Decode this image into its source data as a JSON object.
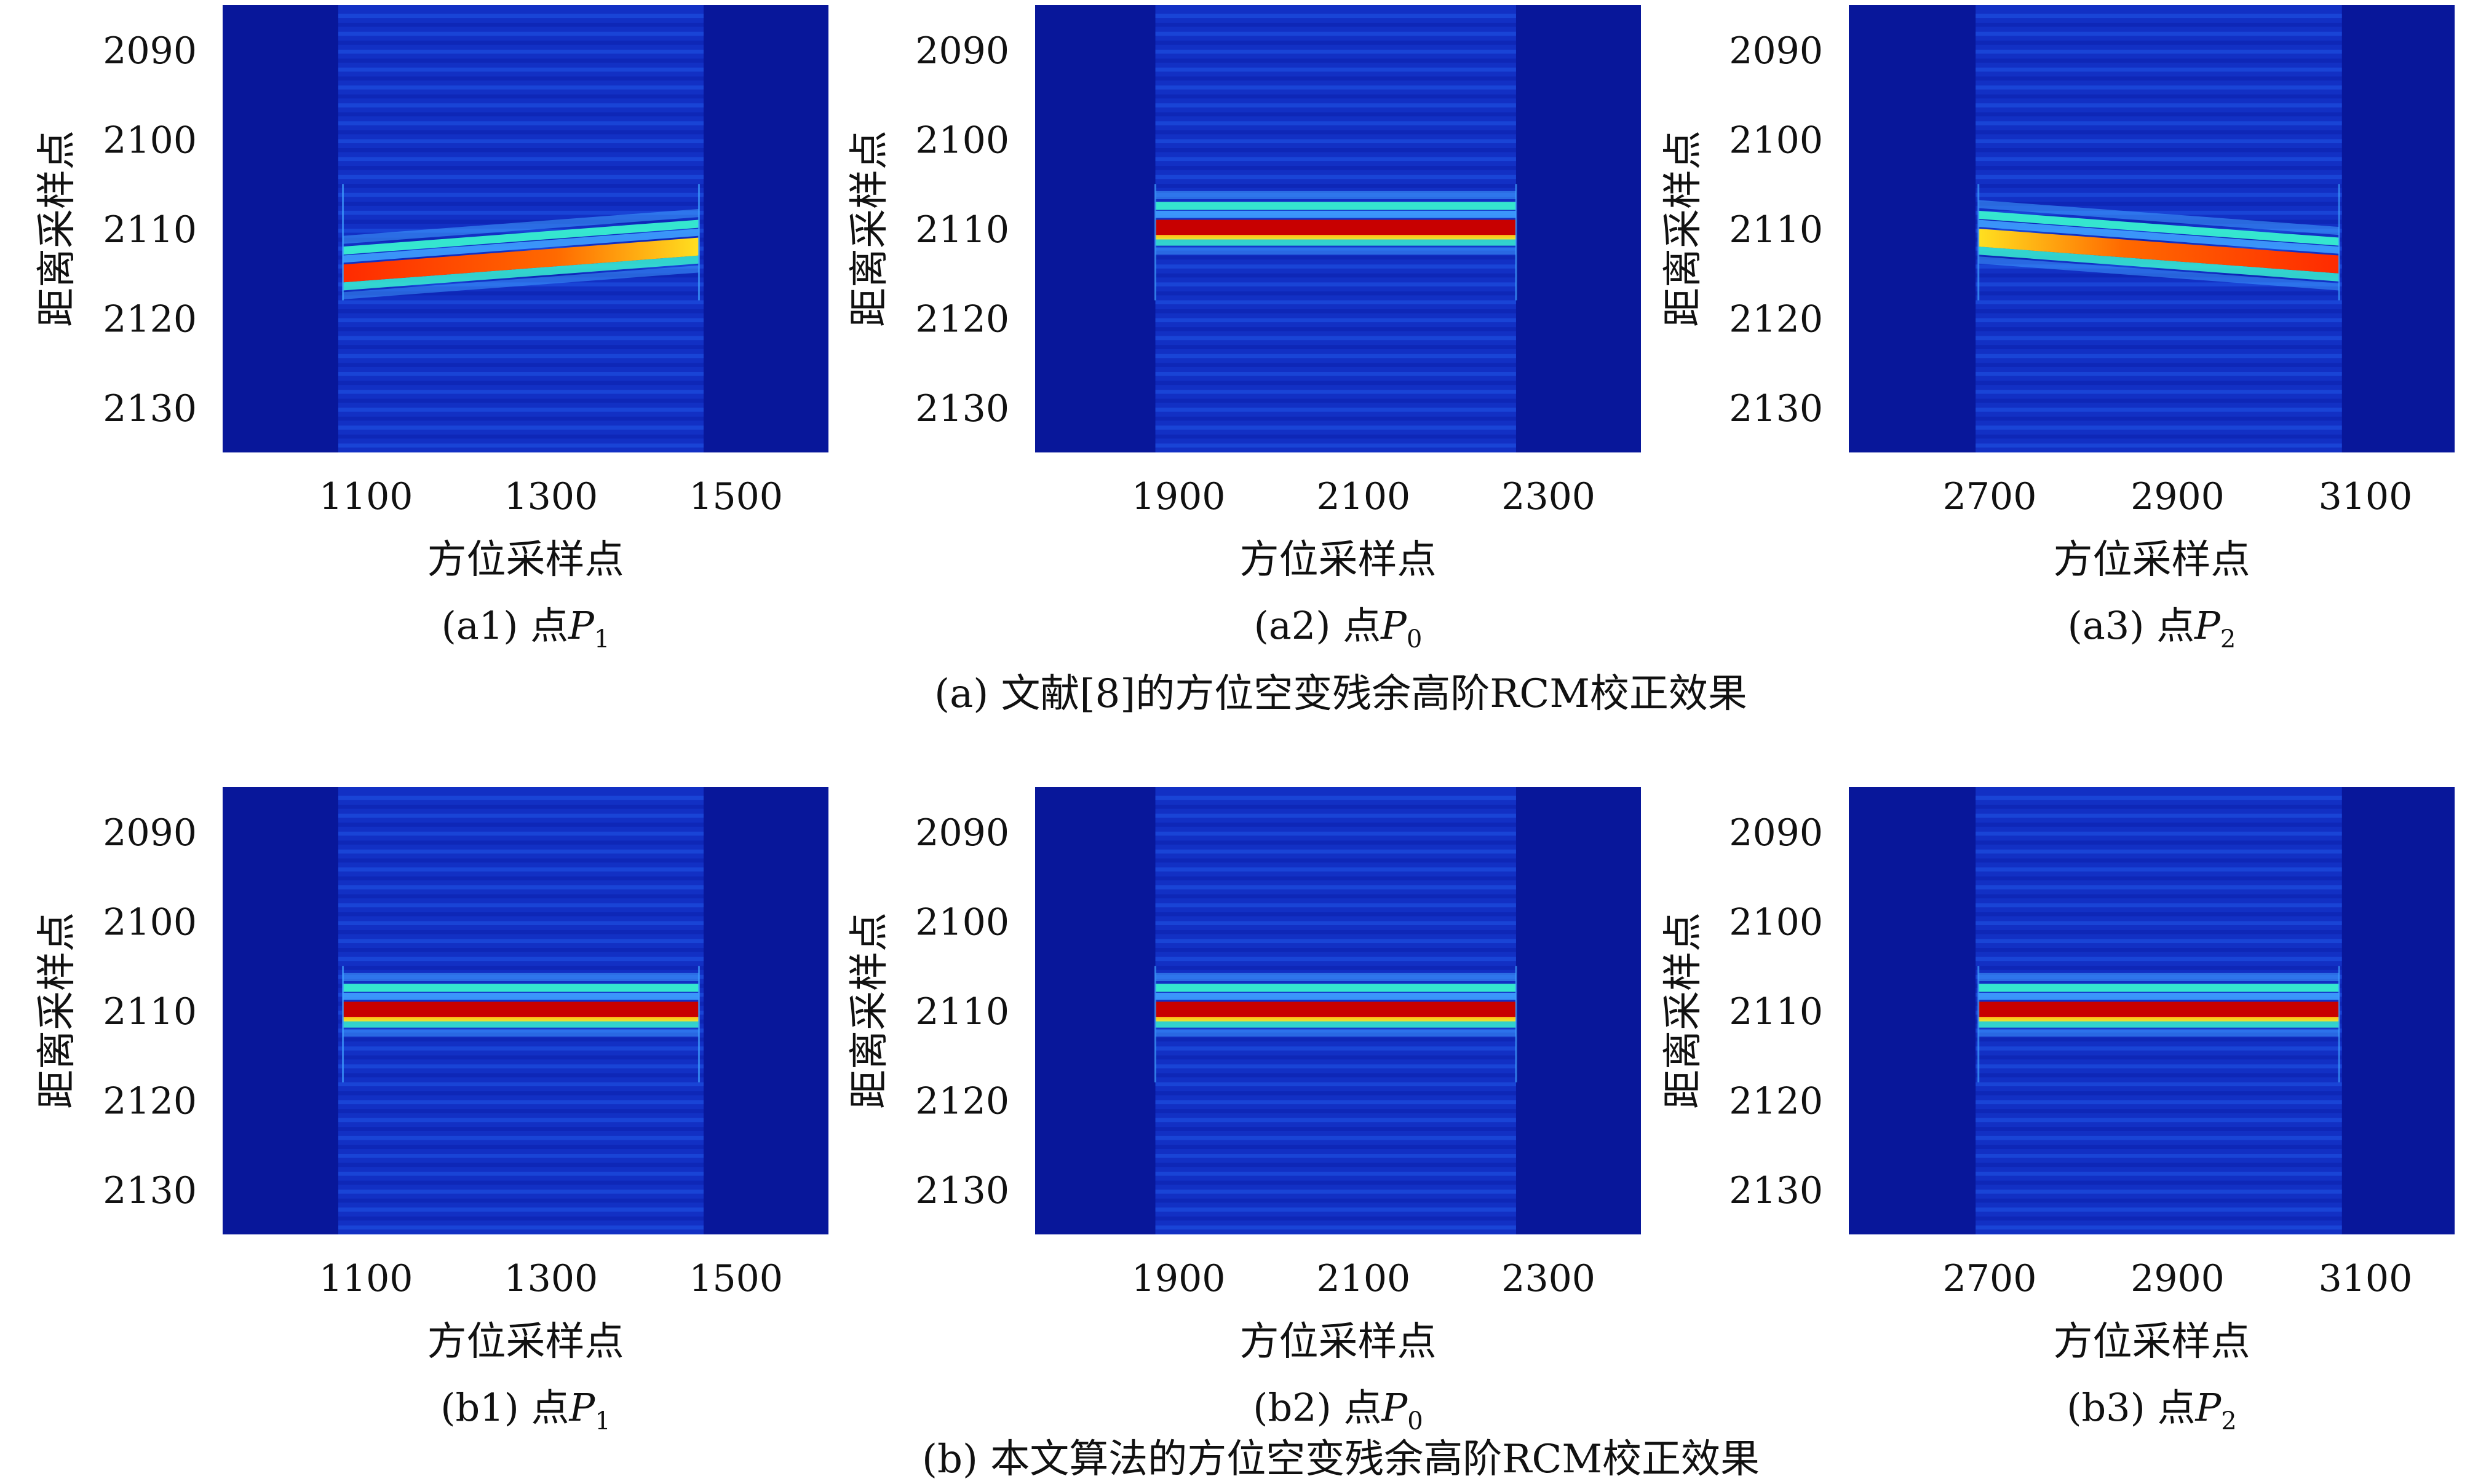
{
  "figure": {
    "caption_a": "(a) 文献[8]的方位空变残余高阶RCM校正效果",
    "caption_b": "(b) 本文算法的方位空变残余高阶RCM校正效果"
  },
  "chart_data": [
    {
      "id": "a1",
      "type": "heatmap",
      "row": "a",
      "sublabel": "(a1) 点",
      "point_symbol": "P",
      "point_index": "1",
      "xlabel": "方位采样点",
      "ylabel": "距离采样点",
      "xlim": [
        945,
        1600
      ],
      "ylim": [
        2085,
        2135
      ],
      "xticks": [
        1100,
        1300,
        1500
      ],
      "yticks": [
        2090,
        2100,
        2110,
        2120,
        2130
      ],
      "xtick_labels": [
        "1100",
        "1300",
        "1500"
      ],
      "ytick_labels": [
        "2090",
        "2100",
        "2110",
        "2120",
        "2130"
      ],
      "signal_span": [
        1070,
        1465
      ],
      "inner_span": [
        1075,
        1460
      ],
      "center_start": 2114,
      "center_end": 2111
    },
    {
      "id": "a2",
      "type": "heatmap",
      "row": "a",
      "sublabel": "(a2) 点",
      "point_symbol": "P",
      "point_index": "0",
      "xlabel": "方位采样点",
      "ylabel": "距离采样点",
      "xlim": [
        1745,
        2400
      ],
      "ylim": [
        2085,
        2135
      ],
      "xticks": [
        1900,
        2100,
        2300
      ],
      "yticks": [
        2090,
        2100,
        2110,
        2120,
        2130
      ],
      "xtick_labels": [
        "1900",
        "2100",
        "2300"
      ],
      "ytick_labels": [
        "2090",
        "2100",
        "2110",
        "2120",
        "2130"
      ],
      "signal_span": [
        1875,
        2265
      ],
      "inner_span": [
        1875,
        2265
      ],
      "center_start": 2109,
      "center_end": 2109
    },
    {
      "id": "a3",
      "type": "heatmap",
      "row": "a",
      "sublabel": "(a3) 点",
      "point_symbol": "P",
      "point_index": "2",
      "xlabel": "方位采样点",
      "ylabel": "距离采样点",
      "xlim": [
        2550,
        3195
      ],
      "ylim": [
        2085,
        2135
      ],
      "xticks": [
        2700,
        2900,
        3100
      ],
      "yticks": [
        2090,
        2100,
        2110,
        2120,
        2130
      ],
      "xtick_labels": [
        "2700",
        "2900",
        "3100"
      ],
      "ytick_labels": [
        "2090",
        "2100",
        "2110",
        "2120",
        "2130"
      ],
      "signal_span": [
        2685,
        3075
      ],
      "inner_span": [
        2688,
        3072
      ],
      "center_start": 2110,
      "center_end": 2113
    },
    {
      "id": "b1",
      "type": "heatmap",
      "row": "b",
      "sublabel": "(b1) 点",
      "point_symbol": "P",
      "point_index": "1",
      "xlabel": "方位采样点",
      "ylabel": "距离采样点",
      "xlim": [
        945,
        1600
      ],
      "ylim": [
        2085,
        2135
      ],
      "xticks": [
        1100,
        1300,
        1500
      ],
      "yticks": [
        2090,
        2100,
        2110,
        2120,
        2130
      ],
      "xtick_labels": [
        "1100",
        "1300",
        "1500"
      ],
      "ytick_labels": [
        "2090",
        "2100",
        "2110",
        "2120",
        "2130"
      ],
      "signal_span": [
        1070,
        1465
      ],
      "inner_span": [
        1075,
        1460
      ],
      "center_start": 2109,
      "center_end": 2109
    },
    {
      "id": "b2",
      "type": "heatmap",
      "row": "b",
      "sublabel": "(b2) 点",
      "point_symbol": "P",
      "point_index": "0",
      "xlabel": "方位采样点",
      "ylabel": "距离采样点",
      "xlim": [
        1745,
        2400
      ],
      "ylim": [
        2085,
        2135
      ],
      "xticks": [
        1900,
        2100,
        2300
      ],
      "yticks": [
        2090,
        2100,
        2110,
        2120,
        2130
      ],
      "xtick_labels": [
        "1900",
        "2100",
        "2300"
      ],
      "ytick_labels": [
        "2090",
        "2100",
        "2110",
        "2120",
        "2130"
      ],
      "signal_span": [
        1875,
        2265
      ],
      "inner_span": [
        1875,
        2265
      ],
      "center_start": 2109,
      "center_end": 2109
    },
    {
      "id": "b3",
      "type": "heatmap",
      "row": "b",
      "sublabel": "(b3) 点",
      "point_symbol": "P",
      "point_index": "2",
      "xlabel": "方位采样点",
      "ylabel": "距离采样点",
      "xlim": [
        2550,
        3195
      ],
      "ylim": [
        2085,
        2135
      ],
      "xticks": [
        2700,
        2900,
        3100
      ],
      "yticks": [
        2090,
        2100,
        2110,
        2120,
        2130
      ],
      "xtick_labels": [
        "2700",
        "2900",
        "3100"
      ],
      "ytick_labels": [
        "2090",
        "2100",
        "2110",
        "2120",
        "2130"
      ],
      "signal_span": [
        2685,
        3075
      ],
      "inner_span": [
        2688,
        3072
      ],
      "center_start": 2109,
      "center_end": 2109
    }
  ],
  "colors": {
    "background": "#08179a",
    "signal_base": "#1230c4",
    "stripe_light": "#1f55e6",
    "stripe_dark": "#0a1ca8",
    "peak": "#c80000",
    "yellow": "#ffe020",
    "cyan": "#38f0d0",
    "light_blue": "#3fa0ff"
  }
}
